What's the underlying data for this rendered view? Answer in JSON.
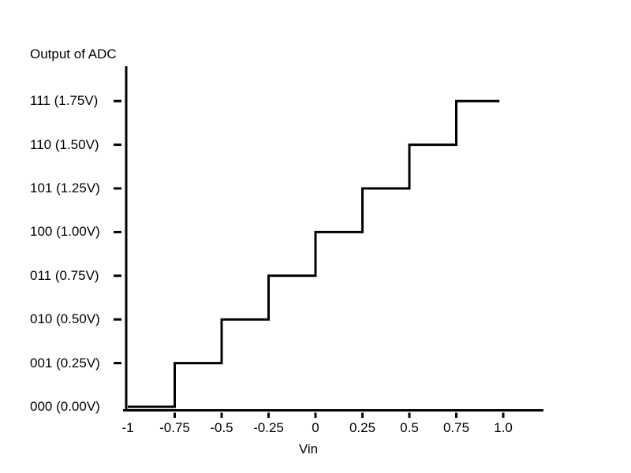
{
  "chart_data": {
    "type": "line",
    "subtype": "staircase-step",
    "title": "Output of ADC",
    "xlabel": "Vin",
    "grid": false,
    "legend": false,
    "xlim": [
      -1,
      1.2
    ],
    "colors": {
      "line": "#000000",
      "text": "#000000",
      "background": "#ffffff"
    },
    "x_axis": {
      "label": "Vin",
      "ticks": [
        {
          "value": -1,
          "label": "-1",
          "has_tick_mark": false
        },
        {
          "value": -0.75,
          "label": "-0.75",
          "has_tick_mark": true
        },
        {
          "value": -0.5,
          "label": "-0.5",
          "has_tick_mark": true
        },
        {
          "value": -0.25,
          "label": "-0.25",
          "has_tick_mark": true
        },
        {
          "value": 0,
          "label": "0",
          "has_tick_mark": true
        },
        {
          "value": 0.25,
          "label": "0.25",
          "has_tick_mark": true
        },
        {
          "value": 0.5,
          "label": "0.5",
          "has_tick_mark": true
        },
        {
          "value": 0.75,
          "label": "0.75",
          "has_tick_mark": true
        },
        {
          "value": 1.0,
          "label": "1.0",
          "has_tick_mark": true
        }
      ]
    },
    "y_axis": {
      "label": "Output of ADC",
      "ticks": [
        {
          "level": 7,
          "label": "111 (1.75V)",
          "has_tick_mark": true
        },
        {
          "level": 6,
          "label": "110 (1.50V)",
          "has_tick_mark": true
        },
        {
          "level": 5,
          "label": "101 (1.25V)",
          "has_tick_mark": true
        },
        {
          "level": 4,
          "label": "100 (1.00V)",
          "has_tick_mark": true
        },
        {
          "level": 3,
          "label": "011 (0.75V)",
          "has_tick_mark": true
        },
        {
          "level": 2,
          "label": "010 (0.50V)",
          "has_tick_mark": true
        },
        {
          "level": 1,
          "label": "001 (0.25V)",
          "has_tick_mark": true
        },
        {
          "level": 0,
          "label": "000 (0.00V)",
          "has_tick_mark": false
        }
      ]
    },
    "steps": [
      {
        "code": "000",
        "output_volts": 0.0,
        "vin_from": -1.0,
        "vin_to": -0.75
      },
      {
        "code": "001",
        "output_volts": 0.25,
        "vin_from": -0.75,
        "vin_to": -0.5
      },
      {
        "code": "010",
        "output_volts": 0.5,
        "vin_from": -0.5,
        "vin_to": -0.25
      },
      {
        "code": "011",
        "output_volts": 0.75,
        "vin_from": -0.25,
        "vin_to": 0.0
      },
      {
        "code": "100",
        "output_volts": 1.0,
        "vin_from": 0.0,
        "vin_to": 0.25
      },
      {
        "code": "101",
        "output_volts": 1.25,
        "vin_from": 0.25,
        "vin_to": 0.5
      },
      {
        "code": "110",
        "output_volts": 1.5,
        "vin_from": 0.5,
        "vin_to": 0.75
      },
      {
        "code": "111",
        "output_volts": 1.75,
        "vin_from": 0.75,
        "vin_to": 0.98
      }
    ]
  }
}
